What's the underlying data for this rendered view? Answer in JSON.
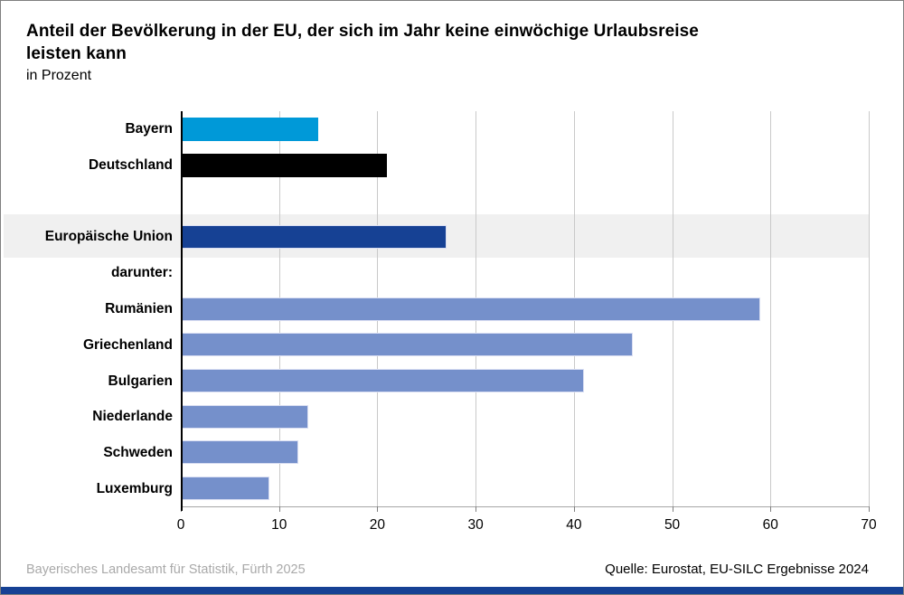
{
  "title": {
    "line1": "Anteil der Bevölkerung in der EU, der sich im Jahr keine einwöchige Urlaubsreise",
    "line2": "leisten kann",
    "subtitle": "in Prozent"
  },
  "chart_data": {
    "type": "bar",
    "orientation": "horizontal",
    "unit": "Prozent",
    "xlim": [
      0,
      70
    ],
    "xticks": [
      0,
      10,
      20,
      30,
      40,
      50,
      60,
      70
    ],
    "grid": true,
    "rows": [
      {
        "label": "Bayern",
        "value": 14,
        "color_key": "bayern",
        "kind": "bar"
      },
      {
        "label": "Deutschland",
        "value": 21,
        "color_key": "deutschland",
        "kind": "bar"
      },
      {
        "label": "",
        "value": null,
        "color_key": null,
        "kind": "spacer"
      },
      {
        "label": "Europäische Union",
        "value": 27,
        "color_key": "eu",
        "kind": "bar",
        "highlighted": true
      },
      {
        "label": "darunter:",
        "value": null,
        "color_key": null,
        "kind": "section"
      },
      {
        "label": "Rumänien",
        "value": 59,
        "color_key": "member",
        "kind": "bar"
      },
      {
        "label": "Griechenland",
        "value": 46,
        "color_key": "member",
        "kind": "bar"
      },
      {
        "label": "Bulgarien",
        "value": 41,
        "color_key": "member",
        "kind": "bar"
      },
      {
        "label": "Niederlande",
        "value": 13,
        "color_key": "member",
        "kind": "bar"
      },
      {
        "label": "Schweden",
        "value": 12,
        "color_key": "member",
        "kind": "bar"
      },
      {
        "label": "Luxemburg",
        "value": 9,
        "color_key": "member",
        "kind": "bar"
      }
    ]
  },
  "colors": {
    "bayern": "#0099d8",
    "deutschland": "#000000",
    "eu": "#164194",
    "member": "#7590cb",
    "member_border": "#d9def2",
    "highlight_band": "#f0f0f0",
    "gridline": "#c9c9c9",
    "bottom_stripe": "#164194"
  },
  "footer": {
    "left": "Bayerisches Landesamt für Statistik, Fürth 2025",
    "right": "Quelle: Eurostat, EU-SILC Ergebnisse 2024"
  }
}
